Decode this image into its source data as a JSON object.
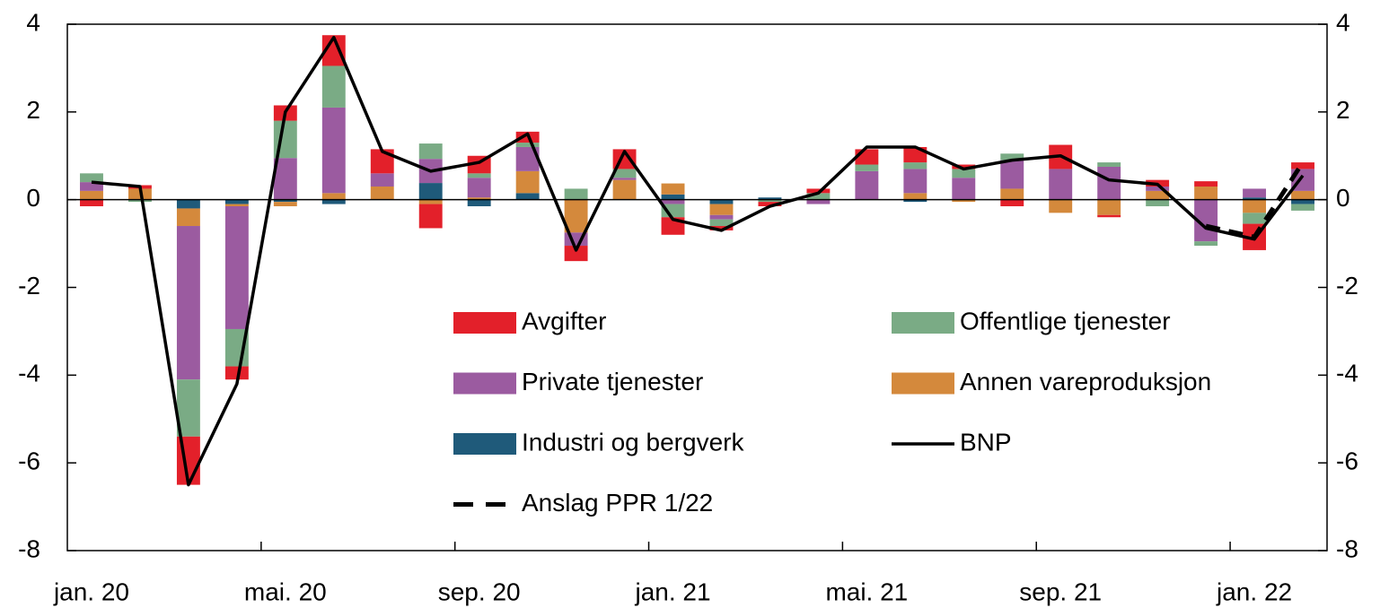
{
  "chart_data": {
    "type": "bar",
    "categories": [
      "jan. 20",
      null,
      null,
      null,
      "mai. 20",
      null,
      null,
      null,
      "sep. 20",
      null,
      null,
      null,
      "jan. 21",
      null,
      null,
      null,
      "mai. 21",
      null,
      null,
      null,
      "sep. 21",
      null,
      null,
      null,
      "jan. 22",
      null
    ],
    "series": [
      {
        "name": "Industri og bergverk",
        "color": "#1f5a7a",
        "values": [
          0,
          0,
          -0.2,
          -0.1,
          -0.05,
          -0.1,
          0,
          0.38,
          -0.15,
          0.15,
          0,
          0,
          0.12,
          -0.1,
          0.05,
          0,
          0,
          -0.05,
          0,
          0,
          0,
          0,
          0,
          0,
          0.05,
          -0.1
        ]
      },
      {
        "name": "Annen vareproduksjon",
        "color": "#d4893c",
        "values": [
          0.2,
          0.25,
          -0.4,
          -0.05,
          -0.1,
          0.15,
          0.3,
          -0.1,
          0.05,
          0.5,
          -0.75,
          0.45,
          0.25,
          -0.25,
          0,
          0,
          0,
          0.15,
          -0.05,
          0.25,
          -0.3,
          -0.35,
          0.2,
          0.3,
          -0.3,
          0.2
        ]
      },
      {
        "name": "Private tjenester",
        "color": "#9b5ba0",
        "values": [
          0.2,
          0,
          -3.5,
          -2.8,
          0.95,
          1.95,
          0.3,
          0.55,
          0.45,
          0.55,
          -0.3,
          0.05,
          -0.1,
          -0.1,
          0,
          -0.1,
          0.65,
          0.55,
          0.5,
          0.65,
          0.7,
          0.75,
          0.1,
          -0.95,
          0.2,
          0.5
        ]
      },
      {
        "name": "Offentlige tjenester",
        "color": "#7aab85",
        "values": [
          0.2,
          -0.05,
          -1.3,
          -0.85,
          0.85,
          0.95,
          0,
          0.35,
          0.1,
          0.1,
          0.25,
          0.2,
          -0.3,
          -0.15,
          -0.05,
          0.15,
          0.15,
          0.15,
          0.2,
          0.15,
          0,
          0.1,
          -0.15,
          -0.1,
          -0.25,
          -0.15
        ]
      },
      {
        "name": "Avgifter",
        "color": "#e3202a",
        "values": [
          -0.15,
          0.08,
          -1.1,
          -0.3,
          0.35,
          0.7,
          0.55,
          -0.55,
          0.4,
          0.25,
          -0.35,
          0.45,
          -0.4,
          -0.1,
          -0.1,
          0.1,
          0.35,
          0.35,
          0.1,
          -0.15,
          0.55,
          -0.05,
          0.15,
          0.12,
          -0.6,
          0.15
        ]
      }
    ],
    "lines": [
      {
        "name": "BNP",
        "color": "#000000",
        "dash": false,
        "values": [
          0.4,
          0.3,
          -6.5,
          -4.2,
          2.0,
          3.7,
          1.1,
          0.65,
          0.85,
          1.5,
          -1.15,
          1.1,
          -0.45,
          -0.7,
          -0.15,
          0.15,
          1.2,
          1.2,
          0.7,
          0.9,
          1.0,
          0.45,
          0.35,
          -0.65,
          -0.9,
          0.55
        ]
      },
      {
        "name": "Anslag PPR 1/22",
        "color": "#000000",
        "dash": true,
        "values": [
          null,
          null,
          null,
          null,
          null,
          null,
          null,
          null,
          null,
          null,
          null,
          null,
          null,
          null,
          null,
          null,
          null,
          null,
          null,
          null,
          null,
          null,
          null,
          -0.6,
          -0.85,
          0.85
        ]
      }
    ],
    "ylim": [
      -8,
      4
    ],
    "yticks": [
      -8,
      -6,
      -4,
      -2,
      0,
      2,
      4
    ],
    "y2lim": [
      -8,
      4
    ],
    "y2ticks": [
      -8,
      -6,
      -4,
      -2,
      0,
      2,
      4
    ]
  }
}
